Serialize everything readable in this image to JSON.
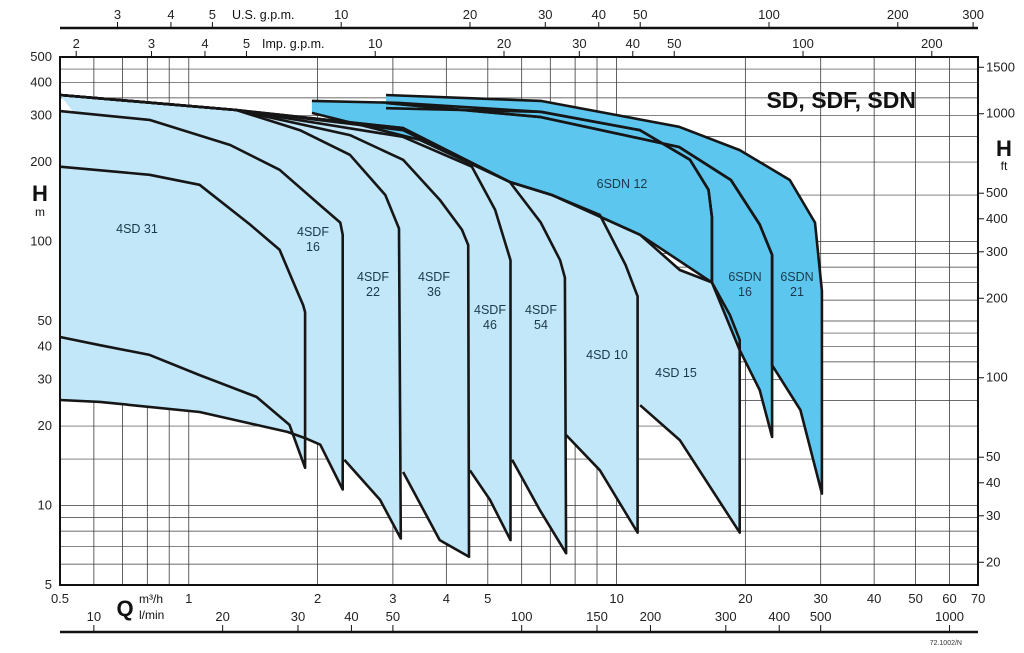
{
  "chart_data": {
    "type": "line",
    "title": "SD, SDF, SDN",
    "code": "72.1002/N",
    "grid": true,
    "x_axis": {
      "label": "Q",
      "unit": "m³/h",
      "unit2": "l/min",
      "scale": "log",
      "range": [
        0.5,
        70
      ],
      "ticks": [
        0.5,
        1,
        2,
        3,
        4,
        5,
        10,
        20,
        30,
        40,
        50,
        60,
        70
      ],
      "lmin_ticks": [
        10,
        20,
        30,
        40,
        50,
        100,
        150,
        200,
        300,
        400,
        500,
        1000
      ]
    },
    "y_axis": {
      "label": "H",
      "unit": "m",
      "scale": "log",
      "range": [
        5,
        500
      ],
      "ticks": [
        5,
        10,
        20,
        30,
        40,
        50,
        100,
        200,
        300,
        400,
        500
      ]
    },
    "y2_axis": {
      "label": "H",
      "unit": "ft",
      "ticks": [
        20,
        30,
        40,
        50,
        100,
        200,
        300,
        400,
        500,
        1000,
        1500
      ]
    },
    "top_axes": [
      {
        "label": "U.S. g.p.m.",
        "ticks": [
          3,
          4,
          5,
          10,
          20,
          30,
          40,
          50,
          100,
          200,
          300
        ]
      },
      {
        "label": "Imp. g.p.m.",
        "ticks": [
          2,
          3,
          4,
          5,
          10,
          20,
          30,
          40,
          50,
          100,
          200
        ]
      }
    ],
    "colors": {
      "light": "#c2e7f8",
      "dark": "#5cc6ef",
      "curve": "#161616",
      "grid": "#3a3a3a"
    },
    "series": [
      {
        "name": "4SD 31",
        "shade": "light",
        "upper": [
          [
            0.5,
            192
          ],
          [
            0.81,
            179
          ],
          [
            1.06,
            164
          ],
          [
            1.39,
            116
          ],
          [
            1.63,
            93
          ],
          [
            1.79,
            65
          ],
          [
            1.85,
            57.5
          ],
          [
            1.87,
            54
          ]
        ],
        "tip": [
          1.87,
          13.9
        ],
        "lower": [
          [
            1.72,
            20.2
          ],
          [
            1.44,
            25.8
          ],
          [
            1.06,
            31.2
          ],
          [
            0.81,
            37.2
          ],
          [
            0.62,
            40.5
          ],
          [
            0.5,
            43.5
          ]
        ]
      },
      {
        "name": "4SDF 16",
        "shade": "light",
        "upper": [
          [
            0.5,
            312
          ],
          [
            0.81,
            289
          ],
          [
            1.25,
            232
          ],
          [
            1.63,
            187
          ],
          [
            2.03,
            137
          ],
          [
            2.26,
            118
          ],
          [
            2.29,
            106
          ]
        ],
        "tip": [
          2.29,
          11.5
        ],
        "lower": [
          [
            2.03,
            17.0
          ],
          [
            1.87,
            18.0
          ],
          [
            1.7,
            19.0
          ],
          [
            1.06,
            22.6
          ],
          [
            0.62,
            24.7
          ],
          [
            0.5,
            25.1
          ]
        ]
      },
      {
        "name": "4SDF 22",
        "shade": "light",
        "upper": [
          [
            0.5,
            359
          ],
          [
            1.29,
            315
          ],
          [
            1.82,
            264
          ],
          [
            2.38,
            213
          ],
          [
            2.88,
            150
          ],
          [
            3.1,
            112
          ]
        ],
        "tip": [
          3.13,
          7.5
        ],
        "lower": [
          [
            2.8,
            10.5
          ],
          [
            2.31,
            14.9
          ]
        ]
      },
      {
        "name": "4SDF 36",
        "shade": "light",
        "upper": [
          [
            0.5,
            359
          ],
          [
            1.29,
            315
          ],
          [
            2.38,
            253
          ],
          [
            3.17,
            204
          ],
          [
            3.86,
            144
          ],
          [
            4.35,
            111
          ],
          [
            4.5,
            97
          ]
        ],
        "tip": [
          4.52,
          6.4
        ],
        "lower": [
          [
            3.86,
            7.4
          ],
          [
            3.17,
            13.4
          ]
        ]
      },
      {
        "name": "4SDF 46",
        "shade": "light",
        "upper": [
          [
            0.5,
            359
          ],
          [
            1.29,
            315
          ],
          [
            3.17,
            249
          ],
          [
            4.59,
            192
          ],
          [
            5.2,
            132
          ],
          [
            5.65,
            85
          ]
        ],
        "tip": [
          5.65,
          7.4
        ],
        "lower": [
          [
            5.06,
            10.5
          ],
          [
            4.54,
            13.6
          ]
        ]
      },
      {
        "name": "4SDF 54",
        "shade": "light",
        "upper": [
          [
            0.5,
            359
          ],
          [
            1.29,
            315
          ],
          [
            3.17,
            264
          ],
          [
            5.63,
            168
          ],
          [
            6.65,
            118
          ],
          [
            7.38,
            85
          ],
          [
            7.57,
            73
          ]
        ],
        "tip": [
          7.62,
          6.6
        ],
        "lower": [
          [
            6.62,
            9.6
          ],
          [
            5.7,
            14.9
          ]
        ]
      },
      {
        "name": "4SD 10",
        "shade": "light",
        "upper": [
          [
            0.5,
            359
          ],
          [
            1.29,
            315
          ],
          [
            3.17,
            269
          ],
          [
            5.63,
            168
          ],
          [
            7.06,
            150
          ],
          [
            9.14,
            126
          ],
          [
            10.5,
            81.5
          ],
          [
            11.2,
            62
          ]
        ],
        "tip": [
          11.2,
          7.9
        ],
        "lower": [
          [
            9.14,
            13.6
          ],
          [
            7.62,
            18.5
          ]
        ]
      },
      {
        "name": "4SD 15",
        "shade": "light",
        "upper": [
          [
            0.5,
            359
          ],
          [
            1.29,
            315
          ],
          [
            3.17,
            269
          ],
          [
            5.63,
            168
          ],
          [
            7.06,
            150
          ],
          [
            11.35,
            106
          ],
          [
            14.05,
            78
          ],
          [
            16.7,
            70
          ],
          [
            18.4,
            52.7
          ],
          [
            19.4,
            42.4
          ]
        ],
        "tip": [
          19.4,
          7.9
        ],
        "lower": [
          [
            14.05,
            17.7
          ],
          [
            11.35,
            24
          ]
        ]
      },
      {
        "name": "6SDN 12",
        "shade": "dark",
        "upper": [
          [
            1.94,
            341
          ],
          [
            3.1,
            335
          ],
          [
            6.65,
            310
          ],
          [
            11.35,
            264
          ],
          [
            14.85,
            204
          ],
          [
            16.4,
            157
          ],
          [
            16.7,
            124
          ]
        ],
        "tip": [
          16.7,
          70
        ],
        "lower": [
          [
            11.35,
            106
          ],
          [
            7.06,
            150
          ],
          [
            5.63,
            168
          ],
          [
            3.46,
            243
          ],
          [
            1.94,
            307
          ]
        ]
      },
      {
        "name": "6SDN 16",
        "shade": "dark",
        "upper": [
          [
            2.89,
            335
          ],
          [
            6.65,
            296
          ],
          [
            14.0,
            228
          ],
          [
            18.5,
            171
          ],
          [
            21.6,
            116
          ],
          [
            23.1,
            89
          ]
        ],
        "tip": [
          23.1,
          18.2
        ],
        "lower": [
          [
            21.6,
            27.4
          ],
          [
            19.4,
            38.8
          ],
          [
            16.7,
            70
          ],
          [
            16.7,
            124
          ],
          [
            16.4,
            157
          ],
          [
            14.85,
            204
          ],
          [
            11.35,
            264
          ],
          [
            6.65,
            310
          ],
          [
            2.89,
            320
          ]
        ]
      },
      {
        "name": "6SDN 21",
        "shade": "dark",
        "upper": [
          [
            2.89,
            359
          ],
          [
            6.65,
            341
          ],
          [
            14.0,
            272
          ],
          [
            19.4,
            222
          ],
          [
            25.4,
            171
          ],
          [
            29.1,
            118
          ],
          [
            30.2,
            65
          ]
        ],
        "tip": [
          30.2,
          11.1
        ],
        "lower": [
          [
            26.9,
            23
          ],
          [
            23.1,
            34
          ],
          [
            23.1,
            89
          ],
          [
            21.6,
            116
          ],
          [
            18.5,
            171
          ],
          [
            14.0,
            228
          ],
          [
            6.65,
            296
          ],
          [
            2.89,
            335
          ]
        ]
      }
    ]
  }
}
